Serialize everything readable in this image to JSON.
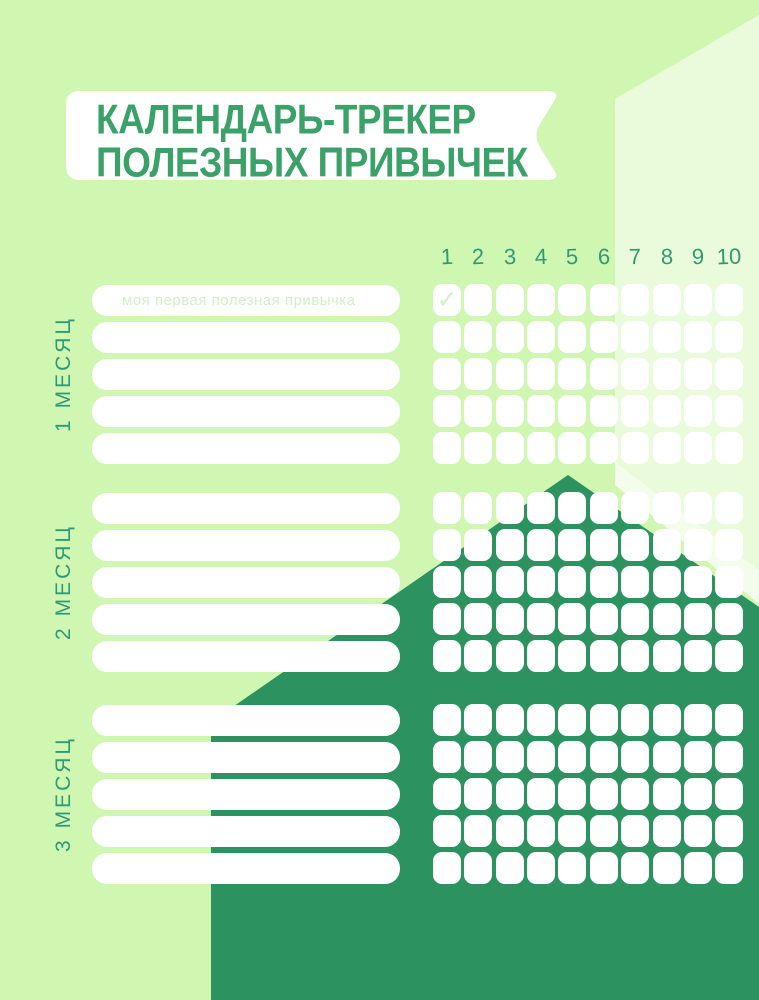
{
  "title": {
    "line1": "КАЛЕНДАРЬ-ТРЕКЕР",
    "line2": "ПОЛЕЗНЫХ ПРИВЫЧЕК"
  },
  "day_numbers": [
    "1",
    "2",
    "3",
    "4",
    "5",
    "6",
    "7",
    "8",
    "9",
    "10"
  ],
  "check_glyph": "✓",
  "sections": [
    {
      "label": "1 МЕСЯЦ",
      "rows": [
        {
          "value": "",
          "placeholder": "моя первая полезная привычка",
          "checked_days": [
            1
          ]
        },
        {
          "value": "",
          "checked_days": []
        },
        {
          "value": "",
          "checked_days": []
        },
        {
          "value": "",
          "checked_days": []
        },
        {
          "value": "",
          "checked_days": []
        }
      ]
    },
    {
      "label": "2 МЕСЯЦ",
      "rows": [
        {
          "value": "",
          "checked_days": []
        },
        {
          "value": "",
          "checked_days": []
        },
        {
          "value": "",
          "checked_days": []
        },
        {
          "value": "",
          "checked_days": []
        },
        {
          "value": "",
          "checked_days": []
        }
      ]
    },
    {
      "label": "3 МЕСЯЦ",
      "rows": [
        {
          "value": "",
          "checked_days": []
        },
        {
          "value": "",
          "checked_days": []
        },
        {
          "value": "",
          "checked_days": []
        },
        {
          "value": "",
          "checked_days": []
        },
        {
          "value": "",
          "checked_days": []
        }
      ]
    }
  ],
  "colors": {
    "bg": "#cff7b2",
    "shape-light": "#e9fbda",
    "shape-lighter": "#f4fdec",
    "dark": "#2b9260",
    "title": "#3aa169",
    "hand": "#2f9b72",
    "pale": "#d2f0ca"
  }
}
